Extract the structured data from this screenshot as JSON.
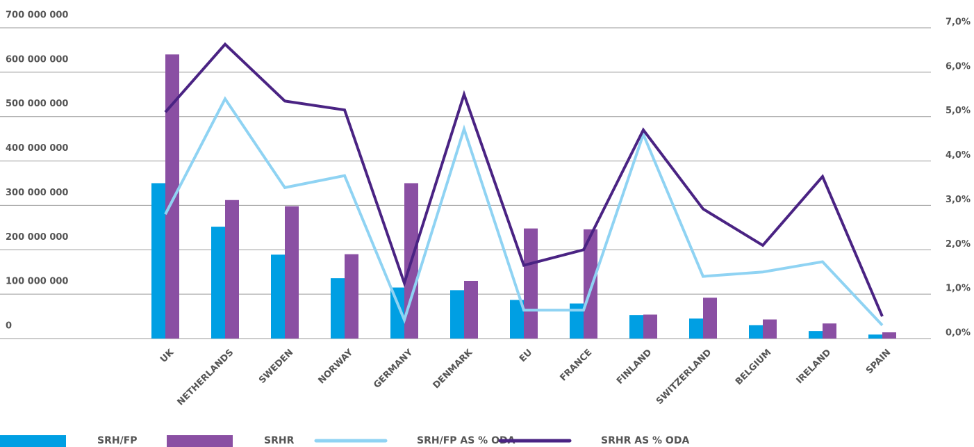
{
  "chart_data": {
    "type": "bar_line",
    "categories": [
      "UK",
      "NETHERLANDS",
      "SWEDEN",
      "NORWAY",
      "GERMANY",
      "DENMARK",
      "EU",
      "FRANCE",
      "FINLAND",
      "SWITZERLAND",
      "BELGIUM",
      "IRELAND",
      "SPAIN"
    ],
    "series": [
      {
        "name": "SRH/FP",
        "type": "bar",
        "color": "#009fe3",
        "values": [
          350000000,
          252000000,
          189000000,
          136000000,
          115000000,
          109000000,
          87000000,
          79000000,
          53000000,
          45000000,
          30000000,
          17000000,
          9000000
        ]
      },
      {
        "name": "SRHR",
        "type": "bar",
        "color": "#8a4fa3",
        "values": [
          640000000,
          312000000,
          298000000,
          190000000,
          350000000,
          130000000,
          248000000,
          246000000,
          54000000,
          92000000,
          43000000,
          34000000,
          14000000
        ]
      },
      {
        "name": "SRH/FP AS % ODA",
        "type": "line",
        "axis": "y2",
        "color": "#8fd3f3",
        "values": [
          2.8,
          5.4,
          3.4,
          3.67,
          0.42,
          4.72,
          0.64,
          0.64,
          4.6,
          1.4,
          1.5,
          1.73,
          0.3
        ]
      },
      {
        "name": "SRHR AS % ODA",
        "type": "line",
        "axis": "y2",
        "color": "#4a2383",
        "values": [
          5.1,
          6.63,
          5.35,
          5.15,
          1.25,
          5.5,
          1.65,
          2.0,
          4.7,
          2.92,
          2.1,
          3.65,
          0.5
        ]
      }
    ],
    "ylim": [
      0,
      700000000
    ],
    "yticks": [
      0,
      {
        "value": 100000000,
        "label": "100 000 000"
      },
      {
        "value": 200000000,
        "label": "200 000 000"
      },
      {
        "value": 300000000,
        "label": "300 000 000"
      },
      {
        "value": 400000000,
        "label": "400 000 000"
      },
      {
        "value": 500000000,
        "label": "500 000 000"
      },
      {
        "value": 600000000,
        "label": "600 000 000"
      },
      {
        "value": 700000000,
        "label": "700 000 000"
      }
    ],
    "y2lim": [
      0,
      7
    ],
    "y2ticks": [
      {
        "value": 0,
        "label": "0,0%"
      },
      {
        "value": 1,
        "label": "1,0%"
      },
      {
        "value": 2,
        "label": "2,0%"
      },
      {
        "value": 3,
        "label": "3,0%"
      },
      {
        "value": 4,
        "label": "4,0%"
      },
      {
        "value": 5,
        "label": "5,0%"
      },
      {
        "value": 6,
        "label": "6,0%"
      },
      {
        "value": 7,
        "label": "7,0%"
      }
    ],
    "grid": true,
    "legend": "bottom"
  }
}
